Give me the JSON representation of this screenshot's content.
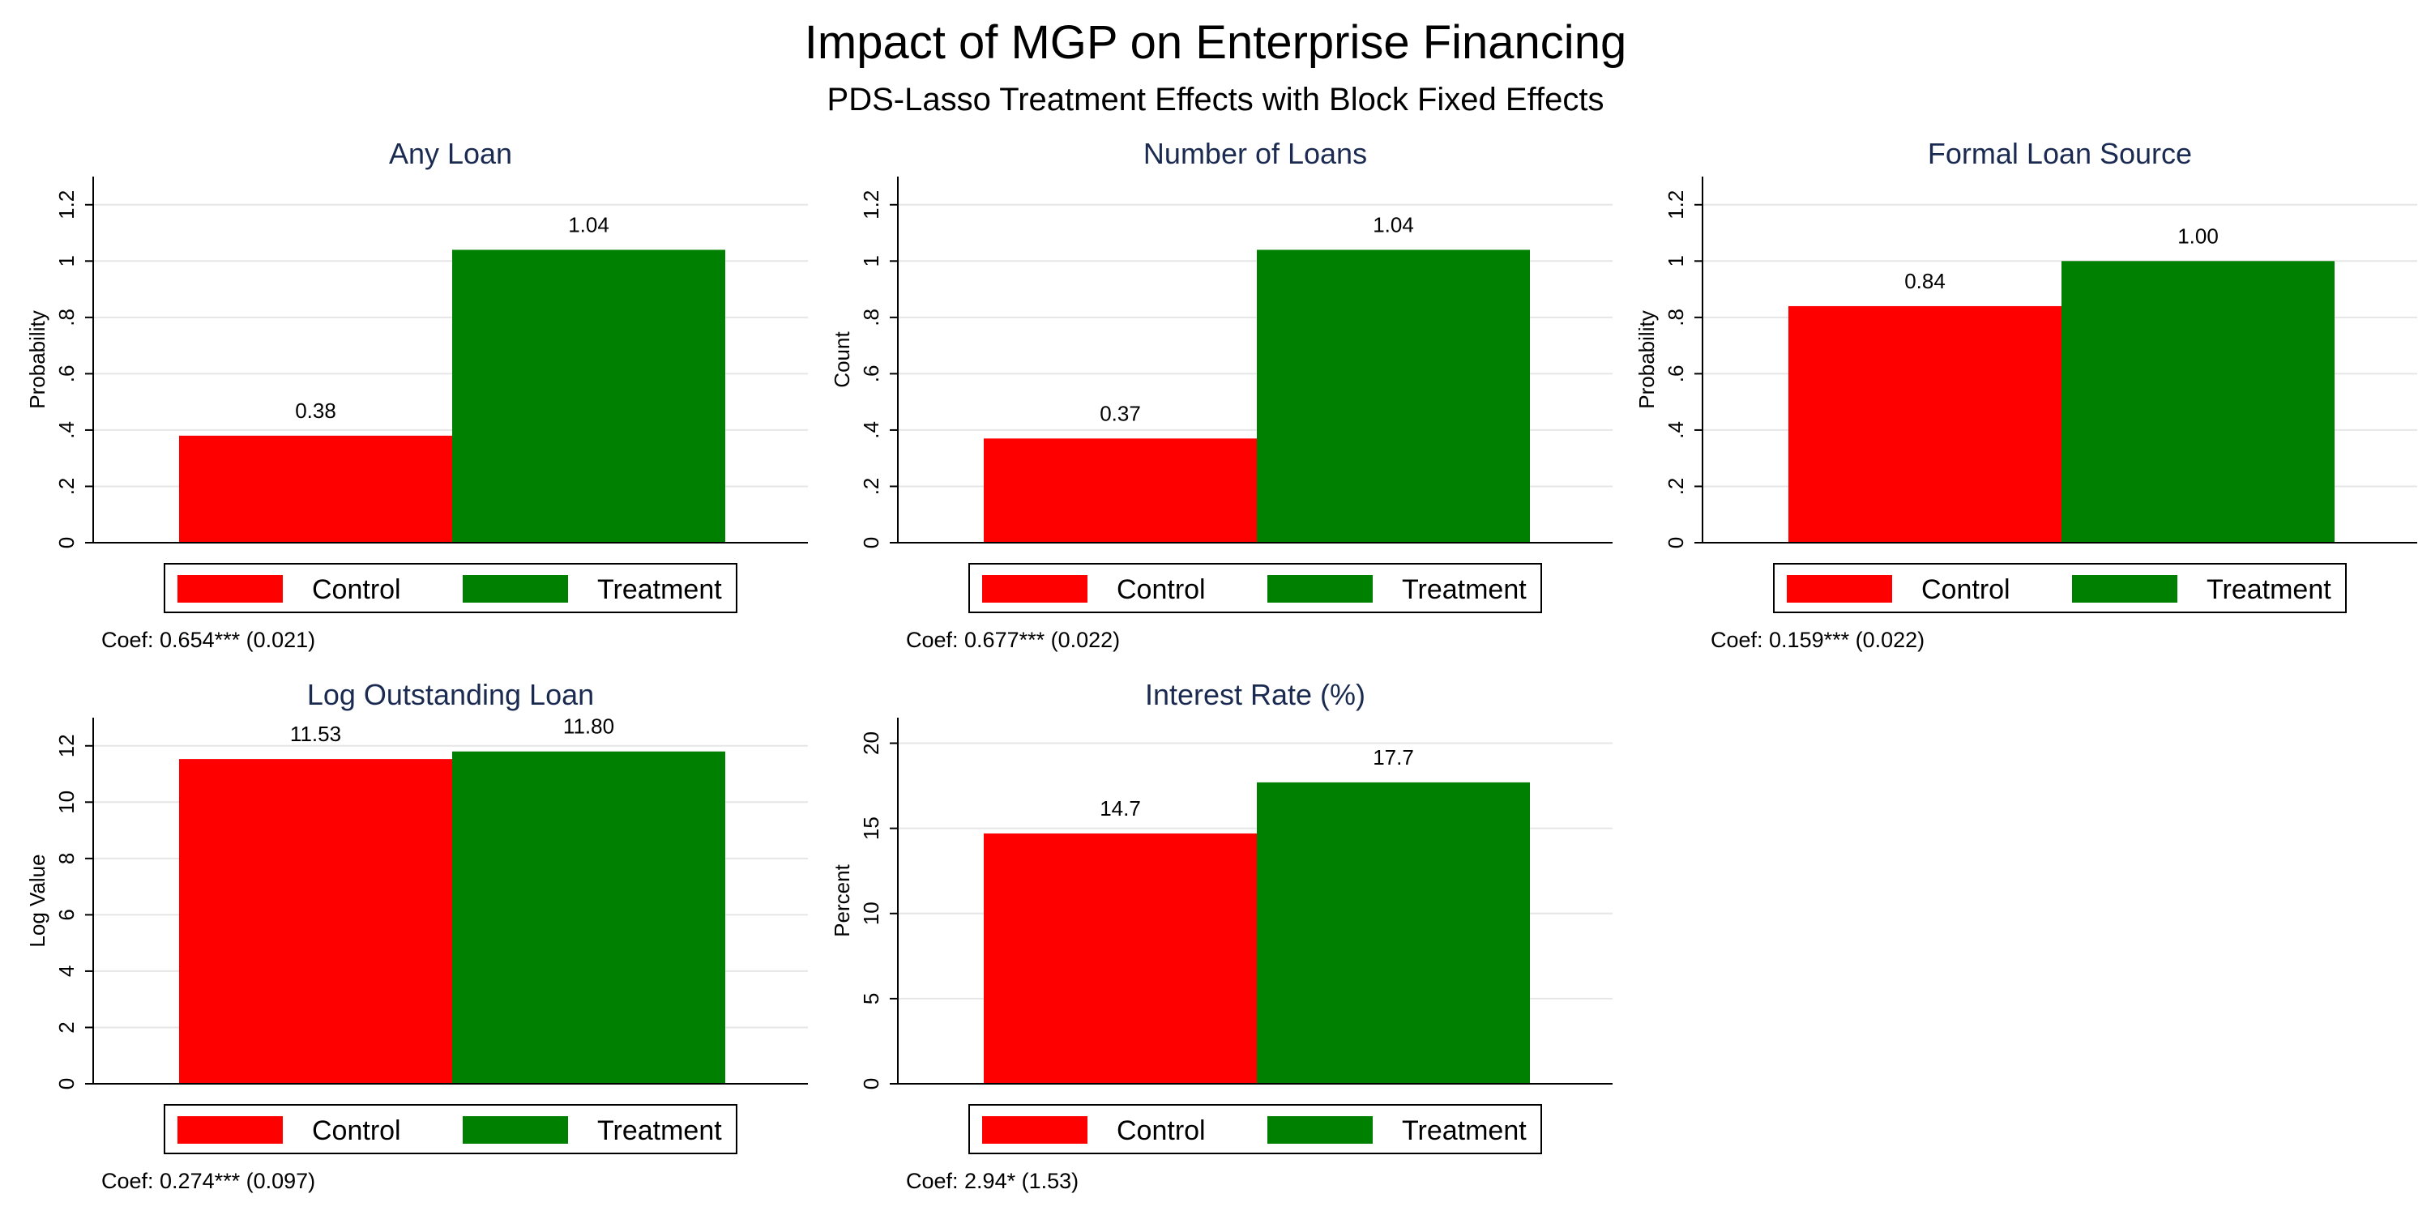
{
  "figure": {
    "title": "Impact of MGP on Enterprise Financing",
    "subtitle": "PDS-Lasso Treatment Effects with Block Fixed Effects"
  },
  "colors": {
    "control": "#ff0000",
    "treatment": "#008000",
    "panel_title": "#1a2a50",
    "grid": "#e6e6e6"
  },
  "legend": {
    "items": [
      "Control",
      "Treatment"
    ],
    "placement": "below-plot"
  },
  "chart_data": [
    {
      "type": "bar",
      "title": "Any Loan",
      "ylabel": "Probability",
      "xlabel": "",
      "categories": [
        "Control",
        "Treatment"
      ],
      "values": [
        0.38,
        1.04
      ],
      "value_labels": [
        "0.38",
        "1.04"
      ],
      "ylim": [
        0,
        1.3
      ],
      "yticks": [
        0,
        0.2,
        0.4,
        0.6,
        0.8,
        1,
        1.2
      ],
      "ytick_labels": [
        "0",
        ".2",
        ".4",
        ".6",
        ".8",
        "1",
        "1.2"
      ],
      "grid": true,
      "note": "Coef: 0.654*** (0.021)"
    },
    {
      "type": "bar",
      "title": "Number of Loans",
      "ylabel": "Count",
      "xlabel": "",
      "categories": [
        "Control",
        "Treatment"
      ],
      "values": [
        0.37,
        1.04
      ],
      "value_labels": [
        "0.37",
        "1.04"
      ],
      "ylim": [
        0,
        1.3
      ],
      "yticks": [
        0,
        0.2,
        0.4,
        0.6,
        0.8,
        1,
        1.2
      ],
      "ytick_labels": [
        "0",
        ".2",
        ".4",
        ".6",
        ".8",
        "1",
        "1.2"
      ],
      "grid": true,
      "note": "Coef: 0.677*** (0.022)"
    },
    {
      "type": "bar",
      "title": "Formal Loan Source",
      "ylabel": "Probability",
      "xlabel": "",
      "categories": [
        "Control",
        "Treatment"
      ],
      "values": [
        0.84,
        1.0
      ],
      "value_labels": [
        "0.84",
        "1.00"
      ],
      "ylim": [
        0,
        1.3
      ],
      "yticks": [
        0,
        0.2,
        0.4,
        0.6,
        0.8,
        1,
        1.2
      ],
      "ytick_labels": [
        "0",
        ".2",
        ".4",
        ".6",
        ".8",
        "1",
        "1.2"
      ],
      "grid": true,
      "note": "Coef: 0.159*** (0.022)"
    },
    {
      "type": "bar",
      "title": "Log Outstanding Loan",
      "ylabel": "Log Value",
      "xlabel": "",
      "categories": [
        "Control",
        "Treatment"
      ],
      "values": [
        11.53,
        11.8
      ],
      "value_labels": [
        "11.53",
        "11.80"
      ],
      "ylim": [
        0,
        13
      ],
      "yticks": [
        0,
        2,
        4,
        6,
        8,
        10,
        12
      ],
      "ytick_labels": [
        "0",
        "2",
        "4",
        "6",
        "8",
        "10",
        "12"
      ],
      "grid": true,
      "note": "Coef: 0.274*** (0.097)"
    },
    {
      "type": "bar",
      "title": "Interest Rate (%)",
      "ylabel": "Percent",
      "xlabel": "",
      "categories": [
        "Control",
        "Treatment"
      ],
      "values": [
        14.7,
        17.7
      ],
      "value_labels": [
        "14.7",
        "17.7"
      ],
      "ylim": [
        0,
        21.5
      ],
      "yticks": [
        0,
        5,
        10,
        15,
        20
      ],
      "ytick_labels": [
        "0",
        "5",
        "10",
        "15",
        "20"
      ],
      "grid": true,
      "note": "Coef: 2.94* (1.53)"
    }
  ]
}
